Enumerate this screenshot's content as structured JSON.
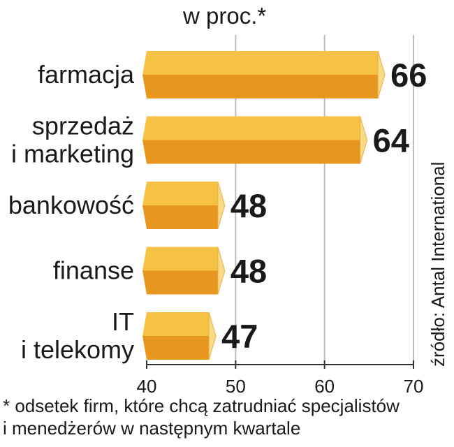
{
  "title": "w proc.*",
  "source": "źródło: Antal International",
  "footnote": {
    "line1": "* odsetek firm, które chcą zatrudniać specjalistów",
    "line2": "i menedżerów w następnym kwartale"
  },
  "colors": {
    "bar_light": "#F6C244",
    "bar_dark": "#E7961F",
    "bar_cap": "#FADA86",
    "grid": "#bdbdbd"
  },
  "chart_data": {
    "type": "bar",
    "orientation": "horizontal",
    "title": "w proc.*",
    "categories": [
      [
        "farmacja"
      ],
      [
        "sprzedaż",
        "i marketing"
      ],
      [
        "bankowość"
      ],
      [
        "finanse"
      ],
      [
        "IT",
        "i telekomy"
      ]
    ],
    "values": [
      66,
      64,
      48,
      48,
      47
    ],
    "xlim": [
      40,
      70
    ],
    "xticks": [
      40,
      50,
      60,
      70
    ],
    "grid": true
  }
}
